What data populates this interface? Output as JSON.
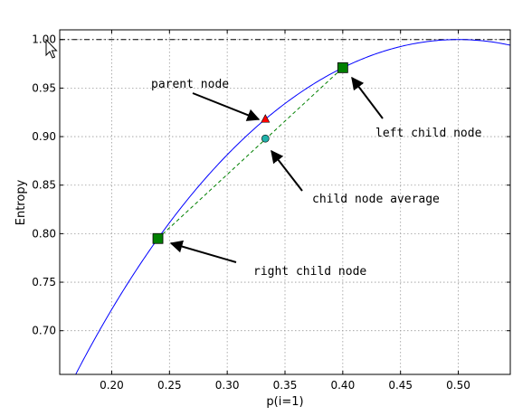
{
  "chart_data": {
    "type": "line",
    "title": "",
    "xlabel": "p(i=1)",
    "ylabel": "Entropy",
    "xlim": [
      0.155,
      0.545
    ],
    "ylim": [
      0.655,
      1.01
    ],
    "xticks": [
      "0.20",
      "0.25",
      "0.30",
      "0.35",
      "0.40",
      "0.45",
      "0.50"
    ],
    "xtick_values": [
      0.2,
      0.25,
      0.3,
      0.35,
      0.4,
      0.45,
      0.5
    ],
    "yticks": [
      "0.70",
      "0.75",
      "0.80",
      "0.85",
      "0.90",
      "0.95",
      "1.00"
    ],
    "ytick_values": [
      0.7,
      0.75,
      0.8,
      0.85,
      0.9,
      0.95,
      1.0
    ],
    "grid": true,
    "reference_line": {
      "y": 1.0,
      "style": "dash-dot",
      "color": "#000000"
    },
    "curve": {
      "function": "binary-entropy",
      "color": "#0000ff"
    },
    "points": {
      "parent": {
        "x": 0.333,
        "y": 0.918,
        "marker": "triangle",
        "color": "#ff0000"
      },
      "left_child": {
        "x": 0.4,
        "y": 0.971,
        "marker": "square",
        "color": "#008000"
      },
      "right_child": {
        "x": 0.24,
        "y": 0.795,
        "marker": "square",
        "color": "#008000"
      },
      "child_average": {
        "x": 0.333,
        "y": 0.898,
        "marker": "circle",
        "color": "#20b2aa"
      }
    },
    "connector": {
      "color": "#008000",
      "style": "dashed"
    },
    "annotations": [
      {
        "text": "parent node",
        "target": "parent"
      },
      {
        "text": "left child node",
        "target": "left_child"
      },
      {
        "text": "child node average",
        "target": "child_average"
      },
      {
        "text": "right child node",
        "target": "right_child"
      }
    ]
  }
}
